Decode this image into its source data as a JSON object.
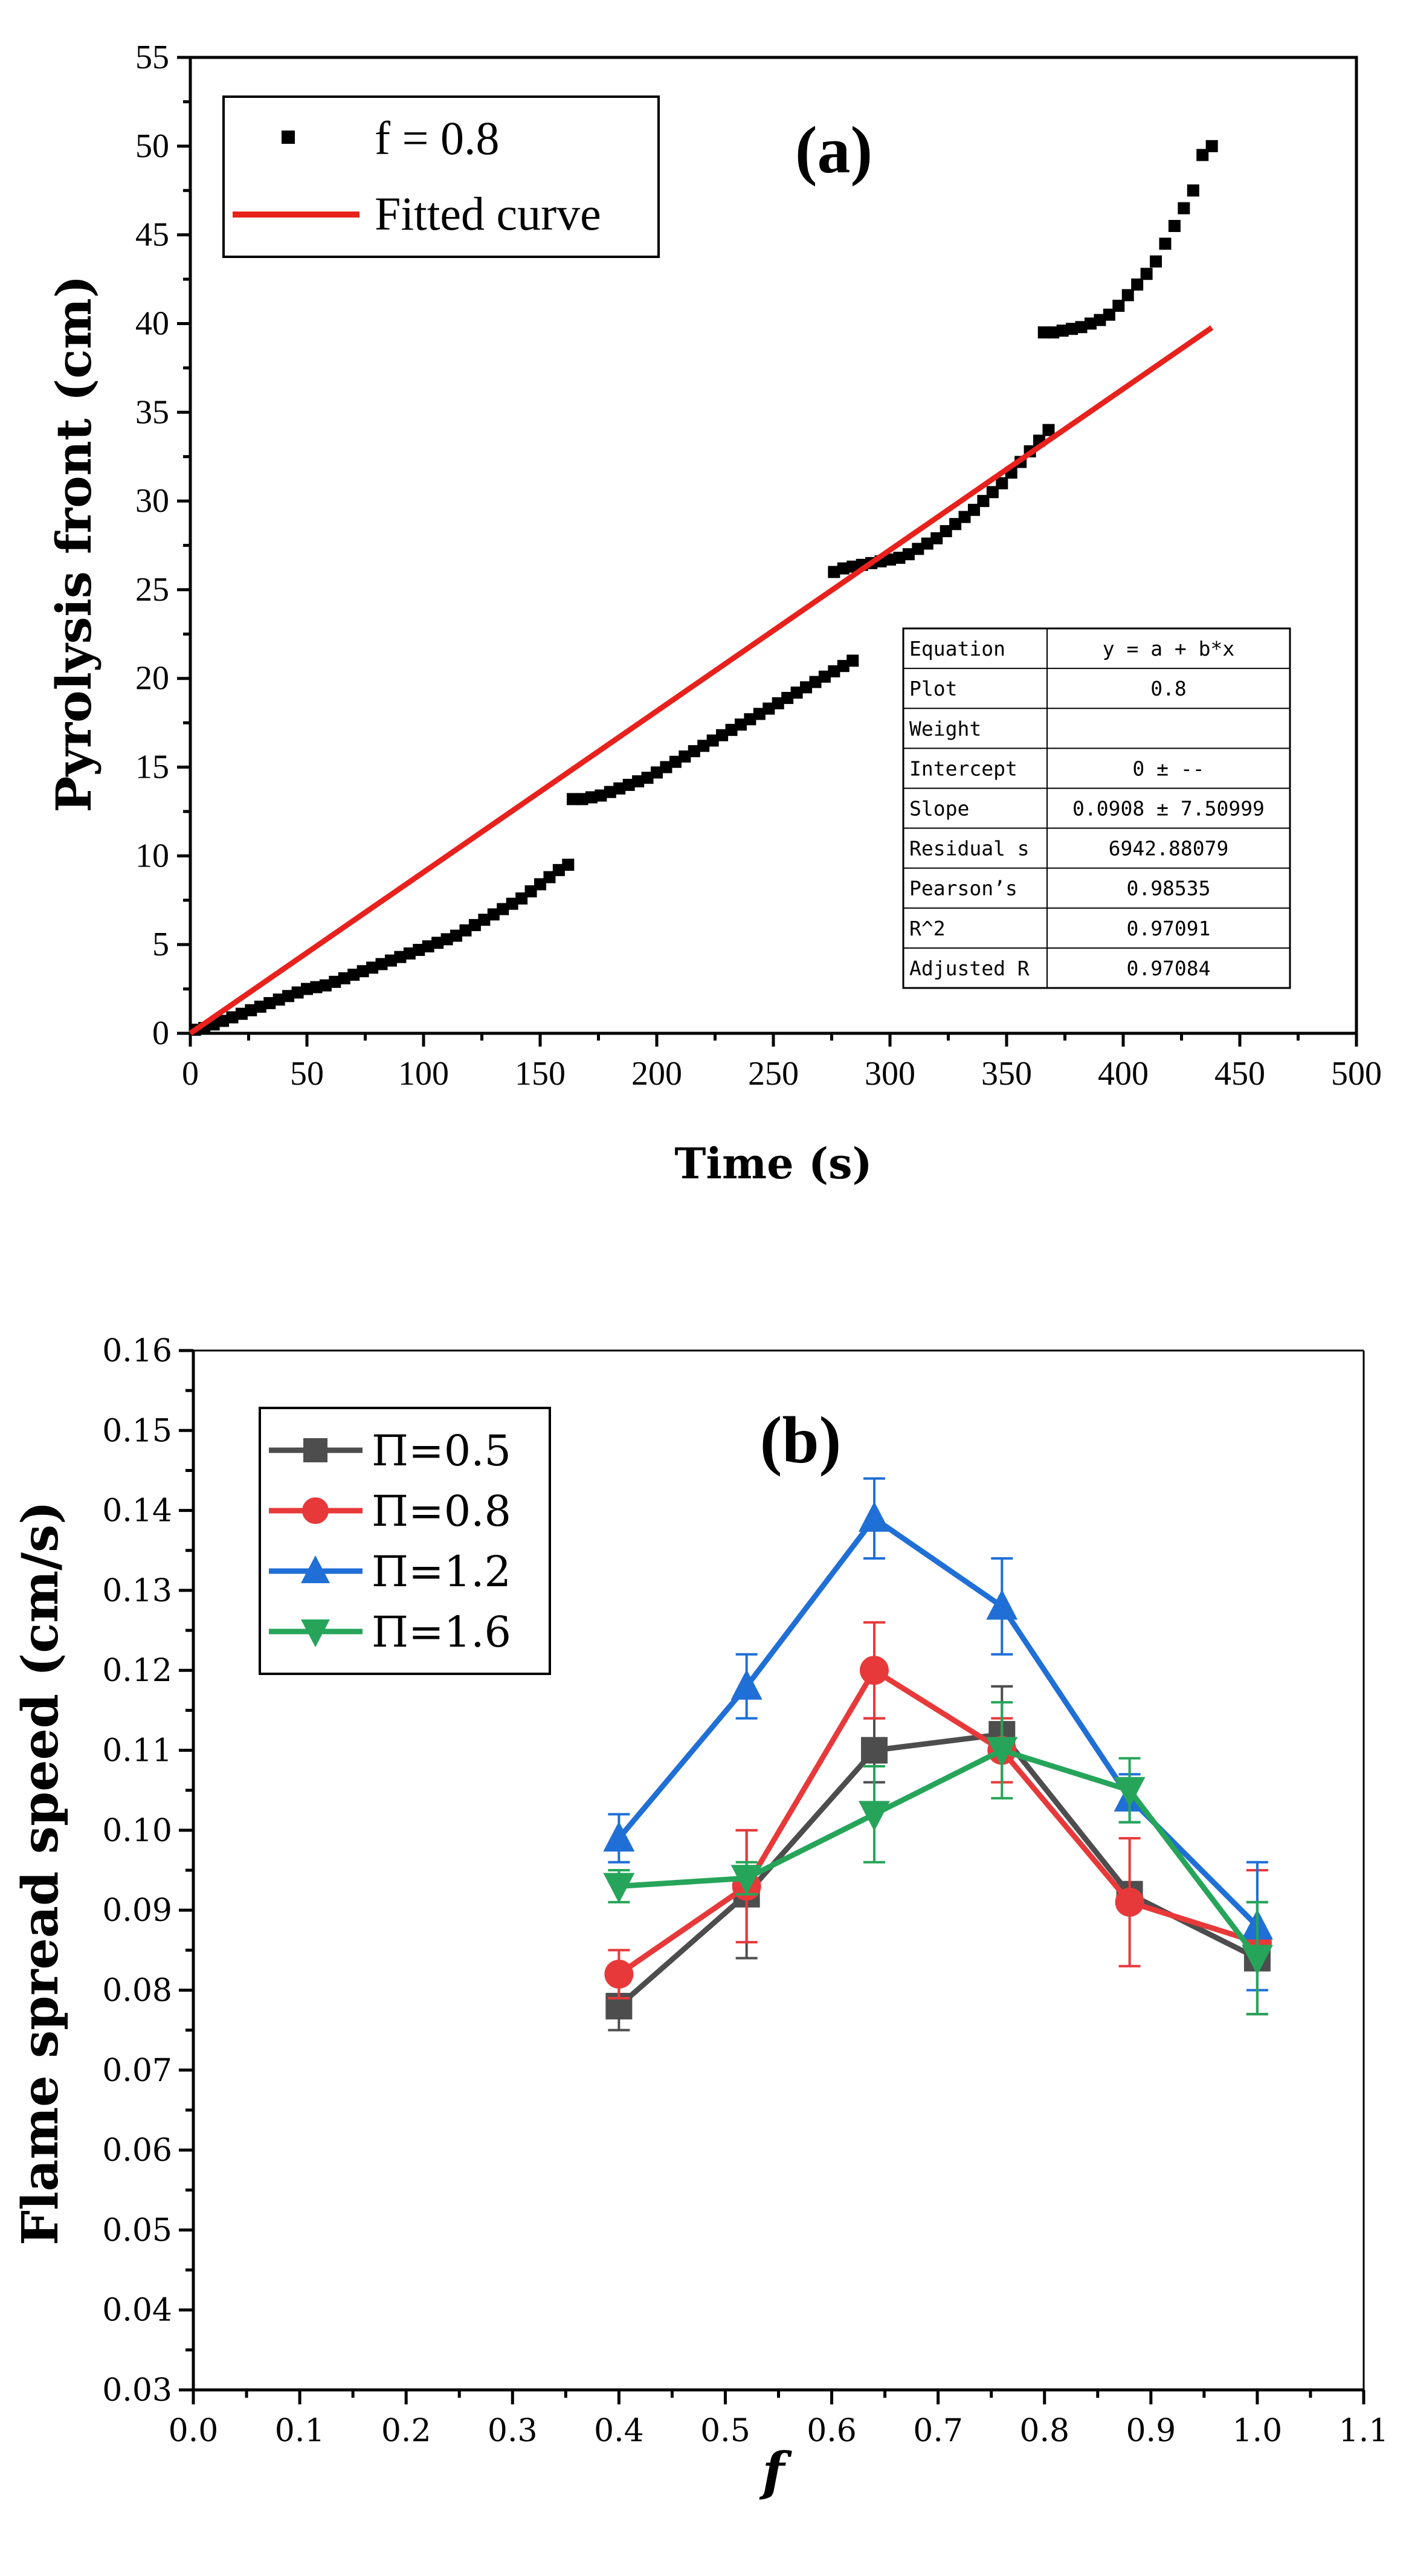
{
  "chart_data": [
    {
      "panel": "(a)",
      "type": "scatter",
      "title": "",
      "xlabel": "Time (s)",
      "ylabel": "Pyrolysis front (cm)",
      "xlim": [
        0,
        500
      ],
      "ylim": [
        0,
        55
      ],
      "xticks": [
        0,
        50,
        100,
        150,
        200,
        250,
        300,
        350,
        400,
        450,
        500
      ],
      "yticks": [
        0,
        5,
        10,
        15,
        20,
        25,
        30,
        35,
        40,
        45,
        50,
        55
      ],
      "series": [
        {
          "name": "f = 0.8",
          "marker": "square",
          "color": "#000000",
          "x": [
            2,
            6,
            10,
            14,
            18,
            22,
            26,
            30,
            34,
            38,
            42,
            46,
            50,
            54,
            58,
            62,
            66,
            70,
            74,
            78,
            82,
            86,
            90,
            94,
            98,
            102,
            106,
            110,
            114,
            118,
            122,
            126,
            130,
            134,
            138,
            142,
            146,
            150,
            154,
            158,
            162,
            164,
            168,
            172,
            176,
            180,
            184,
            188,
            192,
            196,
            200,
            204,
            208,
            212,
            216,
            220,
            224,
            228,
            232,
            236,
            240,
            244,
            248,
            252,
            256,
            260,
            264,
            268,
            272,
            276,
            280,
            284,
            276,
            280,
            284,
            288,
            292,
            296,
            300,
            304,
            308,
            312,
            316,
            320,
            324,
            328,
            332,
            336,
            340,
            344,
            348,
            352,
            356,
            360,
            364,
            368,
            366,
            370,
            374,
            378,
            382,
            386,
            390,
            394,
            398,
            402,
            406,
            410,
            414,
            418,
            422,
            426,
            430,
            434,
            438
          ],
          "y": [
            0.2,
            0.3,
            0.5,
            0.7,
            0.9,
            1.1,
            1.3,
            1.5,
            1.7,
            1.9,
            2.1,
            2.3,
            2.5,
            2.6,
            2.7,
            2.9,
            3.1,
            3.3,
            3.5,
            3.7,
            3.9,
            4.1,
            4.3,
            4.5,
            4.7,
            4.9,
            5.1,
            5.3,
            5.5,
            5.8,
            6.1,
            6.4,
            6.7,
            7.0,
            7.3,
            7.6,
            8.0,
            8.4,
            8.8,
            9.2,
            9.5,
            13.2,
            13.2,
            13.3,
            13.4,
            13.6,
            13.8,
            14.0,
            14.2,
            14.4,
            14.7,
            15.0,
            15.3,
            15.6,
            15.9,
            16.2,
            16.5,
            16.8,
            17.1,
            17.4,
            17.7,
            18.0,
            18.3,
            18.6,
            18.9,
            19.2,
            19.5,
            19.8,
            20.1,
            20.4,
            20.7,
            21.0,
            26.0,
            26.2,
            26.3,
            26.4,
            26.5,
            26.6,
            26.7,
            26.8,
            27.0,
            27.3,
            27.6,
            27.9,
            28.3,
            28.7,
            29.1,
            29.5,
            30.0,
            30.5,
            31.0,
            31.6,
            32.2,
            32.8,
            33.4,
            34.0,
            39.5,
            39.5,
            39.6,
            39.7,
            39.8,
            40.0,
            40.2,
            40.5,
            41.0,
            41.6,
            42.2,
            42.8,
            43.5,
            44.5,
            45.5,
            46.5,
            47.5,
            49.5,
            50.0
          ]
        },
        {
          "name": "Fitted curve",
          "type": "line",
          "color": "#e8211d",
          "x": [
            0,
            438
          ],
          "y": [
            0,
            39.77
          ]
        }
      ],
      "legend": {
        "position": "top-left",
        "entries": [
          "f = 0.8",
          "Fitted curve"
        ]
      },
      "panel_label": "(a)",
      "fit_table": {
        "position": "bottom-right",
        "rows": [
          {
            "label": "Equation",
            "value": "y = a + b*x"
          },
          {
            "label": "Plot",
            "value": "0.8"
          },
          {
            "label": "Weight",
            "value": ""
          },
          {
            "label": "Intercept",
            "value": "0 ± --"
          },
          {
            "label": "Slope",
            "value": "0.0908 ± 7.50999"
          },
          {
            "label": "Residual s",
            "value": "6942.88079"
          },
          {
            "label": "Pearson’s",
            "value": "0.98535"
          },
          {
            "label": "R^2",
            "value": "0.97091"
          },
          {
            "label": "Adjusted R",
            "value": "0.97084"
          }
        ]
      }
    },
    {
      "panel": "(b)",
      "type": "line",
      "title": "",
      "xlabel": "f",
      "ylabel": "Flame spread speed (cm/s)",
      "xlim": [
        0.0,
        1.1
      ],
      "ylim": [
        0.03,
        0.16
      ],
      "xticks": [
        "0.0",
        "0.1",
        "0.2",
        "0.3",
        "0.4",
        "0.5",
        "0.6",
        "0.7",
        "0.8",
        "0.9",
        "1.0",
        "1.1"
      ],
      "yticks": [
        "0.03",
        "0.04",
        "0.05",
        "0.06",
        "0.07",
        "0.08",
        "0.09",
        "0.10",
        "0.11",
        "0.12",
        "0.13",
        "0.14",
        "0.15",
        "0.16"
      ],
      "x": [
        0.4,
        0.52,
        0.64,
        0.76,
        0.88,
        1.0
      ],
      "series": [
        {
          "name": "Π=0.5",
          "marker": "square",
          "color": "#4d4d4d",
          "values": [
            0.078,
            0.092,
            0.11,
            0.112,
            0.092,
            0.084
          ],
          "errors": [
            0.003,
            0.008,
            0.004,
            0.006,
            0.001,
            0.007
          ]
        },
        {
          "name": "Π=0.8",
          "marker": "circle",
          "color": "#e8393a",
          "values": [
            0.082,
            0.093,
            0.12,
            0.11,
            0.091,
            0.086
          ],
          "errors": [
            0.003,
            0.007,
            0.006,
            0.004,
            0.008,
            0.009
          ]
        },
        {
          "name": "Π=1.2",
          "marker": "triangle-up",
          "color": "#1f6fd6",
          "values": [
            0.099,
            0.118,
            0.139,
            0.128,
            0.104,
            0.088
          ],
          "errors": [
            0.003,
            0.004,
            0.005,
            0.006,
            0.003,
            0.008
          ]
        },
        {
          "name": "Π=1.6",
          "marker": "triangle-down",
          "color": "#26a55a",
          "values": [
            0.093,
            0.094,
            0.102,
            0.11,
            0.105,
            0.084
          ],
          "errors": [
            0.002,
            0.002,
            0.006,
            0.006,
            0.004,
            0.007
          ]
        }
      ],
      "legend": {
        "position": "top-left",
        "entries": [
          "Π=0.5",
          "Π=0.8",
          "Π=1.2",
          "Π=1.6"
        ]
      },
      "panel_label": "(b)"
    }
  ]
}
